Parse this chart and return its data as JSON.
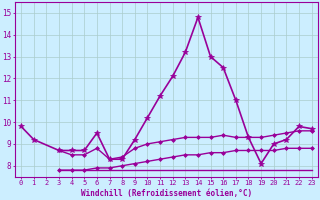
{
  "xlabel": "Windchill (Refroidissement éolien,°C)",
  "bg_color": "#cceeff",
  "line_color": "#990099",
  "grid_color": "#aacccc",
  "xlim": [
    -0.5,
    23.5
  ],
  "ylim": [
    7.5,
    15.5
  ],
  "xticks": [
    0,
    1,
    2,
    3,
    4,
    5,
    6,
    7,
    8,
    9,
    10,
    11,
    12,
    13,
    14,
    15,
    16,
    17,
    18,
    19,
    20,
    21,
    22,
    23
  ],
  "yticks": [
    8,
    9,
    10,
    11,
    12,
    13,
    14,
    15
  ],
  "series": [
    {
      "x": [
        0,
        1,
        3,
        4,
        5,
        6,
        7,
        8,
        9,
        10,
        11,
        12,
        13,
        14,
        15,
        16,
        17,
        18,
        19,
        20,
        21,
        22,
        23
      ],
      "y": [
        9.8,
        9.2,
        8.7,
        8.7,
        8.7,
        9.5,
        8.3,
        8.3,
        9.2,
        10.2,
        11.2,
        12.1,
        13.2,
        14.8,
        13.0,
        12.5,
        11.0,
        9.3,
        8.1,
        9.0,
        9.2,
        9.8,
        9.7
      ],
      "marker": "*",
      "markersize": 4,
      "linewidth": 1.2
    },
    {
      "x": [
        3,
        4,
        5,
        6,
        7,
        8,
        9,
        10,
        11,
        12,
        13,
        14,
        15,
        16,
        17,
        18,
        19,
        20,
        21,
        22,
        23
      ],
      "y": [
        8.7,
        8.5,
        8.5,
        8.8,
        8.3,
        8.4,
        8.8,
        9.0,
        9.1,
        9.2,
        9.3,
        9.3,
        9.3,
        9.4,
        9.3,
        9.3,
        9.3,
        9.4,
        9.5,
        9.6,
        9.6
      ],
      "marker": "D",
      "markersize": 2,
      "linewidth": 1.0
    },
    {
      "x": [
        3,
        4,
        5,
        6,
        7,
        8,
        9,
        10,
        11,
        12,
        13,
        14,
        15,
        16,
        17,
        18,
        19,
        20,
        21,
        22,
        23
      ],
      "y": [
        7.8,
        7.8,
        7.8,
        7.9,
        7.9,
        8.0,
        8.1,
        8.2,
        8.3,
        8.4,
        8.5,
        8.5,
        8.6,
        8.6,
        8.7,
        8.7,
        8.7,
        8.7,
        8.8,
        8.8,
        8.8
      ],
      "marker": "D",
      "markersize": 2,
      "linewidth": 1.0
    },
    {
      "x": [
        3,
        4,
        5,
        6,
        7,
        8,
        9,
        10,
        11,
        12,
        13,
        14,
        15,
        16,
        17,
        18,
        19,
        20,
        21,
        22,
        23
      ],
      "y": [
        7.8,
        7.8,
        7.8,
        7.8,
        7.8,
        7.8,
        7.8,
        7.8,
        7.8,
        7.8,
        7.8,
        7.8,
        7.8,
        7.8,
        7.8,
        7.8,
        7.8,
        7.8,
        7.8,
        7.8,
        7.8
      ],
      "marker": null,
      "markersize": 0,
      "linewidth": 1.0
    }
  ]
}
